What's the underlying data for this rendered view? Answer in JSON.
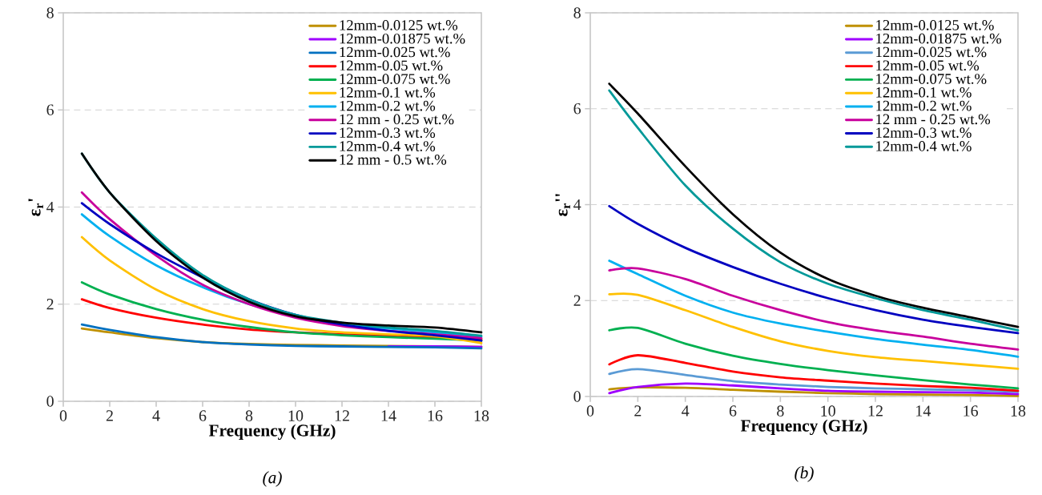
{
  "chart_data": [
    {
      "type": "line",
      "xlabel": "Frequency (GHz)",
      "ylabel": "ε$_{r}$'",
      "annotations": [
        "(a)"
      ],
      "x": [
        0.8,
        2,
        4,
        6,
        8,
        10,
        12,
        14,
        16,
        18
      ],
      "xlim": [
        0,
        18
      ],
      "xticks": [
        0,
        2,
        4,
        6,
        8,
        10,
        12,
        14,
        16,
        18
      ],
      "ylim": [
        0,
        8
      ],
      "yticks": [
        0,
        2,
        4,
        6,
        8
      ],
      "grid": "y",
      "legend": "top right",
      "series": [
        {
          "name": "12mm-0.0125 wt.%",
          "color": "#bf9000",
          "values": [
            1.5,
            1.42,
            1.3,
            1.22,
            1.18,
            1.16,
            1.15,
            1.14,
            1.13,
            1.12
          ]
        },
        {
          "name": "12mm-0.01875 wt.%",
          "color": "#9f00ff",
          "values": [
            null,
            null,
            null,
            null,
            null,
            null,
            null,
            1.13,
            1.13,
            1.12
          ]
        },
        {
          "name": "12mm-0.025 wt.%",
          "color": "#0070c0",
          "values": [
            1.58,
            1.47,
            1.32,
            1.22,
            1.17,
            1.14,
            1.13,
            1.12,
            1.11,
            1.09
          ]
        },
        {
          "name": "12mm-0.05 wt.%",
          "color": "#ff0000",
          "values": [
            2.1,
            1.92,
            1.72,
            1.58,
            1.48,
            1.42,
            1.38,
            1.35,
            1.32,
            1.28
          ]
        },
        {
          "name": "12mm-0.075 wt.%",
          "color": "#00b050",
          "values": [
            2.45,
            2.2,
            1.9,
            1.68,
            1.53,
            1.42,
            1.36,
            1.32,
            1.29,
            1.25
          ]
        },
        {
          "name": "12mm-0.1 wt.%",
          "color": "#ffc000",
          "values": [
            3.38,
            2.9,
            2.3,
            1.9,
            1.65,
            1.5,
            1.42,
            1.38,
            1.34,
            1.2
          ]
        },
        {
          "name": "12mm-0.2 wt.%",
          "color": "#00b0f0",
          "values": [
            3.85,
            3.4,
            2.8,
            2.35,
            2.0,
            1.75,
            1.6,
            1.5,
            1.42,
            1.33
          ]
        },
        {
          "name": "12 mm - 0.25 wt.%",
          "color": "#c8009c",
          "values": [
            4.3,
            3.75,
            3.0,
            2.4,
            2.0,
            1.72,
            1.55,
            1.45,
            1.38,
            1.3
          ]
        },
        {
          "name": "12mm-0.3 wt.%",
          "color": "#0000c0",
          "values": [
            4.08,
            3.65,
            3.05,
            2.55,
            2.1,
            1.78,
            1.58,
            1.45,
            1.36,
            1.25
          ]
        },
        {
          "name": "12mm-0.4 wt.%",
          "color": "#009999",
          "values": [
            5.1,
            4.3,
            3.35,
            2.6,
            2.1,
            1.78,
            1.62,
            1.52,
            1.45,
            1.35
          ]
        },
        {
          "name": "12 mm - 0.5 wt.%",
          "color": "#000000",
          "values": [
            5.1,
            4.3,
            3.3,
            2.55,
            2.05,
            1.75,
            1.62,
            1.56,
            1.52,
            1.42
          ]
        }
      ]
    },
    {
      "type": "line",
      "xlabel": "Frequency (GHz)",
      "ylabel": "ε$_{r}$''",
      "annotations": [
        "(b)"
      ],
      "x": [
        0.8,
        2,
        4,
        6,
        8,
        10,
        12,
        14,
        16,
        18
      ],
      "xlim": [
        0,
        18
      ],
      "xticks": [
        0,
        2,
        4,
        6,
        8,
        10,
        12,
        14,
        16,
        18
      ],
      "ylim": [
        0,
        8
      ],
      "yticks": [
        0,
        2,
        4,
        6,
        8
      ],
      "grid": "y",
      "legend": "top right",
      "series": [
        {
          "name": "12mm-0.0125 wt.%",
          "color": "#bf9000",
          "values": [
            0.15,
            0.19,
            0.18,
            0.14,
            0.1,
            0.07,
            0.05,
            0.04,
            0.03,
            0.01
          ]
        },
        {
          "name": "12mm-0.01875 wt.%",
          "color": "#9f00ff",
          "values": [
            0.07,
            0.2,
            0.27,
            0.23,
            0.17,
            0.12,
            0.1,
            0.09,
            0.08,
            0.05
          ]
        },
        {
          "name": "12mm-0.025 wt.%",
          "color": "#5b9bd5",
          "values": [
            0.47,
            0.57,
            0.45,
            0.32,
            0.25,
            0.2,
            0.17,
            0.15,
            0.13,
            0.1
          ]
        },
        {
          "name": "12mm-0.05 wt.%",
          "color": "#ff0000",
          "values": [
            0.67,
            0.86,
            0.7,
            0.52,
            0.4,
            0.33,
            0.27,
            0.22,
            0.18,
            0.12
          ]
        },
        {
          "name": "12mm-0.075 wt.%",
          "color": "#00b050",
          "values": [
            1.38,
            1.43,
            1.1,
            0.85,
            0.68,
            0.55,
            0.44,
            0.34,
            0.25,
            0.17
          ]
        },
        {
          "name": "12mm-0.1 wt.%",
          "color": "#ffc000",
          "values": [
            2.13,
            2.12,
            1.8,
            1.45,
            1.15,
            0.95,
            0.82,
            0.74,
            0.66,
            0.58
          ]
        },
        {
          "name": "12mm-0.2 wt.%",
          "color": "#00b0f0",
          "values": [
            2.83,
            2.55,
            2.1,
            1.75,
            1.52,
            1.35,
            1.2,
            1.08,
            0.97,
            0.83
          ]
        },
        {
          "name": "12 mm - 0.25 wt.%",
          "color": "#c8009c",
          "values": [
            2.63,
            2.67,
            2.45,
            2.1,
            1.8,
            1.55,
            1.38,
            1.25,
            1.1,
            0.98
          ]
        },
        {
          "name": "12mm-0.3 wt.%",
          "color": "#0000c0",
          "values": [
            3.97,
            3.6,
            3.1,
            2.7,
            2.35,
            2.05,
            1.8,
            1.6,
            1.45,
            1.32
          ]
        },
        {
          "name": "12mm-0.4 wt.%",
          "color": "#009999",
          "values": [
            6.38,
            5.6,
            4.4,
            3.5,
            2.8,
            2.35,
            2.05,
            1.8,
            1.6,
            1.38
          ]
        },
        {
          "color": "#000000",
          "values": [
            6.52,
            5.9,
            4.8,
            3.8,
            3.0,
            2.45,
            2.1,
            1.85,
            1.65,
            1.45
          ]
        }
      ]
    }
  ]
}
